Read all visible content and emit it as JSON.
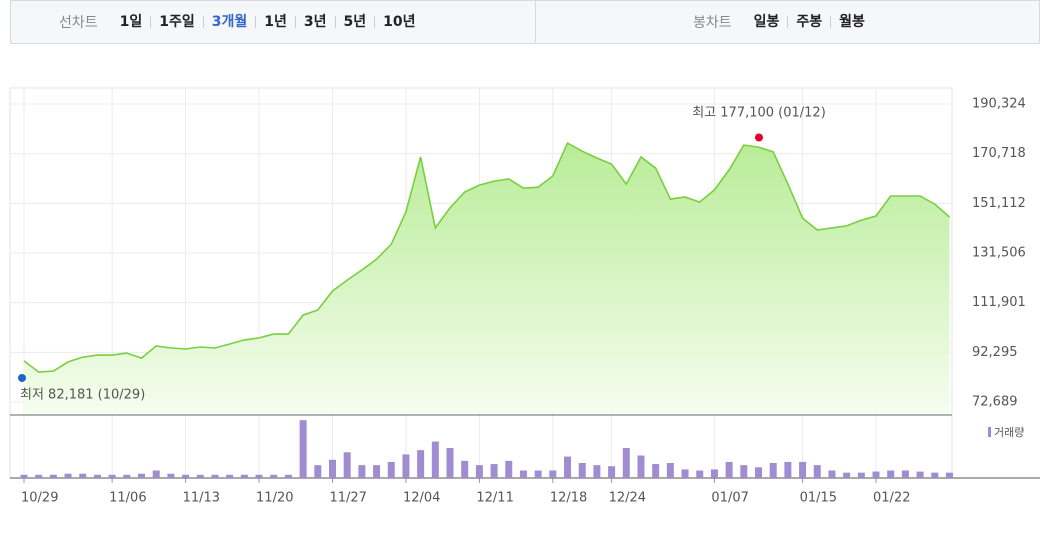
{
  "toolbar": {
    "line_label": "선차트",
    "line_options": [
      "1일",
      "1주일",
      "3개월",
      "1년",
      "3년",
      "5년",
      "10년"
    ],
    "selected": 2,
    "candle_label": "봉차트",
    "candle_options": [
      "일봉",
      "주봉",
      "월봉"
    ]
  },
  "chart_data": {
    "type": "stock",
    "categories": [
      "10/29",
      null,
      null,
      null,
      null,
      null,
      "11/06",
      null,
      null,
      null,
      null,
      "11/13",
      null,
      null,
      null,
      null,
      "11/20",
      null,
      null,
      null,
      null,
      "11/27",
      null,
      null,
      null,
      null,
      "12/04",
      null,
      null,
      null,
      null,
      "12/11",
      null,
      null,
      null,
      null,
      "12/18",
      null,
      null,
      null,
      "12/24",
      null,
      null,
      null,
      null,
      null,
      null,
      "01/07",
      null,
      null,
      null,
      null,
      null,
      "01/15",
      null,
      null,
      null,
      null,
      "01/22",
      null,
      null,
      null,
      null,
      null
    ],
    "series": [
      {
        "color": "#79cf3d",
        "values": [
          88900,
          84500,
          84900,
          88500,
          90400,
          91200,
          91200,
          92000,
          90000,
          94800,
          94000,
          93600,
          94400,
          94000,
          95600,
          97200,
          98000,
          99500,
          99500,
          107000,
          109000,
          116500,
          120800,
          124800,
          129100,
          135000,
          147700,
          169400,
          141400,
          149300,
          155600,
          158300,
          159900,
          160700,
          157100,
          157500,
          161900,
          174900,
          171700,
          169000,
          166600,
          158700,
          169400,
          165000,
          152800,
          153600,
          151600,
          156400,
          164300,
          174100,
          173300,
          171400,
          158700,
          145300,
          140600,
          141400,
          142200,
          144500,
          146100,
          154000,
          154000,
          154000,
          150800,
          145700
        ]
      },
      {
        "name": "거래량",
        "color": "#a08cd0",
        "axis": "volume",
        "values": [
          3,
          3,
          3,
          4,
          4,
          3,
          3,
          3,
          4,
          7,
          4,
          3,
          3,
          3,
          3,
          3,
          3,
          3,
          3,
          54,
          12,
          17,
          24,
          12,
          12,
          15,
          22,
          26,
          34,
          28,
          16,
          12,
          13,
          16,
          7,
          7,
          7,
          20,
          14,
          12,
          11,
          28,
          21,
          13,
          14,
          8,
          7,
          8,
          15,
          12,
          10,
          14,
          15,
          15,
          12,
          7,
          5,
          5,
          6,
          7,
          7,
          6,
          5,
          5
        ]
      }
    ],
    "ylim": [
      72689,
      190324
    ],
    "yticks": [
      {
        "value": 190324,
        "label": "190,324"
      },
      {
        "value": 170718,
        "label": "170,718"
      },
      {
        "value": 151112,
        "label": "151,112"
      },
      {
        "value": 131506,
        "label": "131,506"
      },
      {
        "value": 111901,
        "label": "111,901"
      },
      {
        "value": 92295,
        "label": "92,295"
      },
      {
        "value": 72689,
        "label": "72,689"
      }
    ],
    "volume_ylim": [
      0,
      56
    ],
    "grid": true,
    "annotations": [
      {
        "text": "최고 177,100 (01/12)",
        "value": 177100,
        "color": "#e4002b"
      },
      {
        "text": "최저 82,181 (10/29)",
        "value": 82181,
        "color": "#1e64c8"
      }
    ]
  }
}
